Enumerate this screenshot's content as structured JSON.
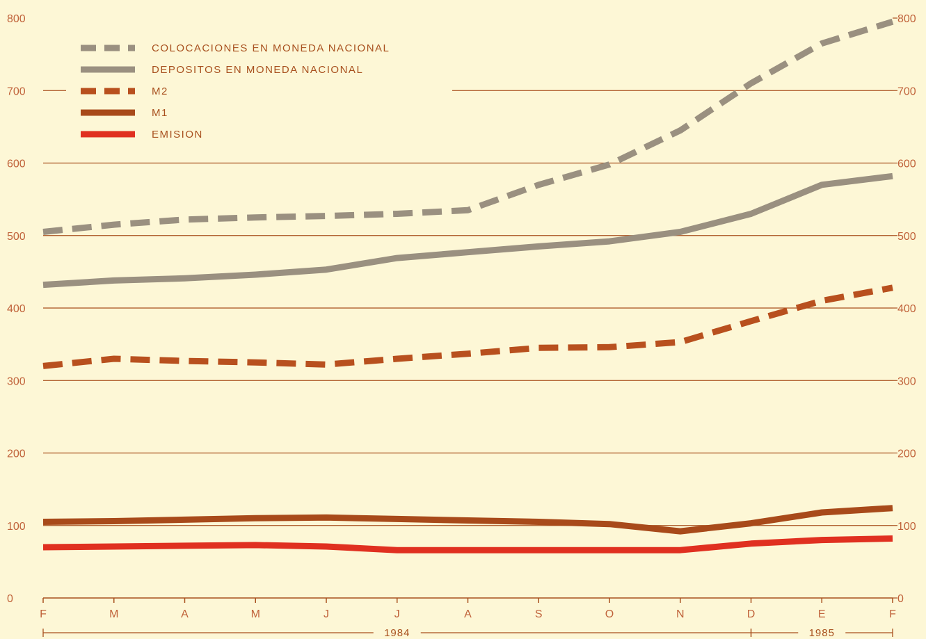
{
  "chart_data": {
    "type": "line",
    "categories": [
      "F",
      "M",
      "A",
      "M",
      "J",
      "J",
      "A",
      "S",
      "O",
      "N",
      "D",
      "E",
      "F"
    ],
    "yticks": [
      "0",
      "100",
      "200",
      "300",
      "400",
      "500",
      "600",
      "700",
      "800"
    ],
    "ylim": [
      0,
      800
    ],
    "years": [
      {
        "label": "1984",
        "from": 0,
        "to": 10
      },
      {
        "label": "1985",
        "from": 10,
        "to": 12
      }
    ],
    "legend_position": "top-left",
    "series": [
      {
        "name": "COLOCACIONES EN MONEDA NACIONAL",
        "color": "#9a9080",
        "style": "dashed",
        "values": [
          505,
          515,
          522,
          525,
          527,
          530,
          535,
          570,
          598,
          645,
          710,
          765,
          795
        ]
      },
      {
        "name": "DEPOSITOS EN MONEDA NACIONAL",
        "color": "#9a9080",
        "style": "solid",
        "values": [
          432,
          438,
          441,
          446,
          453,
          469,
          477,
          485,
          492,
          505,
          530,
          570,
          582
        ]
      },
      {
        "name": "M2",
        "color": "#b8501e",
        "style": "dashed",
        "values": [
          320,
          330,
          327,
          325,
          322,
          330,
          337,
          345,
          346,
          353,
          382,
          410,
          428
        ]
      },
      {
        "name": "M1",
        "color": "#a84a1a",
        "style": "solid",
        "values": [
          105,
          106,
          108,
          110,
          111,
          109,
          107,
          105,
          102,
          92,
          103,
          118,
          124
        ]
      },
      {
        "name": "EMISION",
        "color": "#e03020",
        "style": "solid",
        "values": [
          70,
          71,
          72,
          73,
          71,
          66,
          66,
          66,
          66,
          66,
          75,
          80,
          82
        ]
      }
    ]
  }
}
